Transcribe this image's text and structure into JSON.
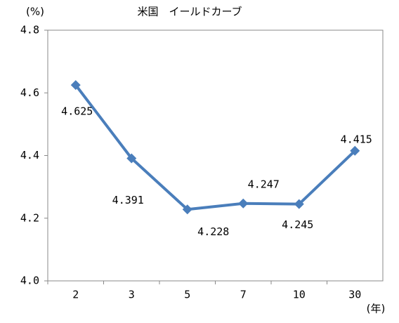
{
  "chart_data": {
    "type": "line",
    "title": "米国　イールドカーブ",
    "y_label": "(%)",
    "x_label": "(年)",
    "categories": [
      "2",
      "3",
      "5",
      "7",
      "10",
      "30"
    ],
    "series": [
      {
        "name": "米国",
        "color": "#4a7ebb",
        "values": [
          4.625,
          4.391,
          4.228,
          4.247,
          4.245,
          4.415
        ]
      }
    ],
    "ylim": [
      4.0,
      4.8
    ],
    "yticks": [
      {
        "value": 4.0,
        "label": "4.0"
      },
      4.2,
      4.4,
      4.6,
      4.8
    ],
    "grid": false
  }
}
